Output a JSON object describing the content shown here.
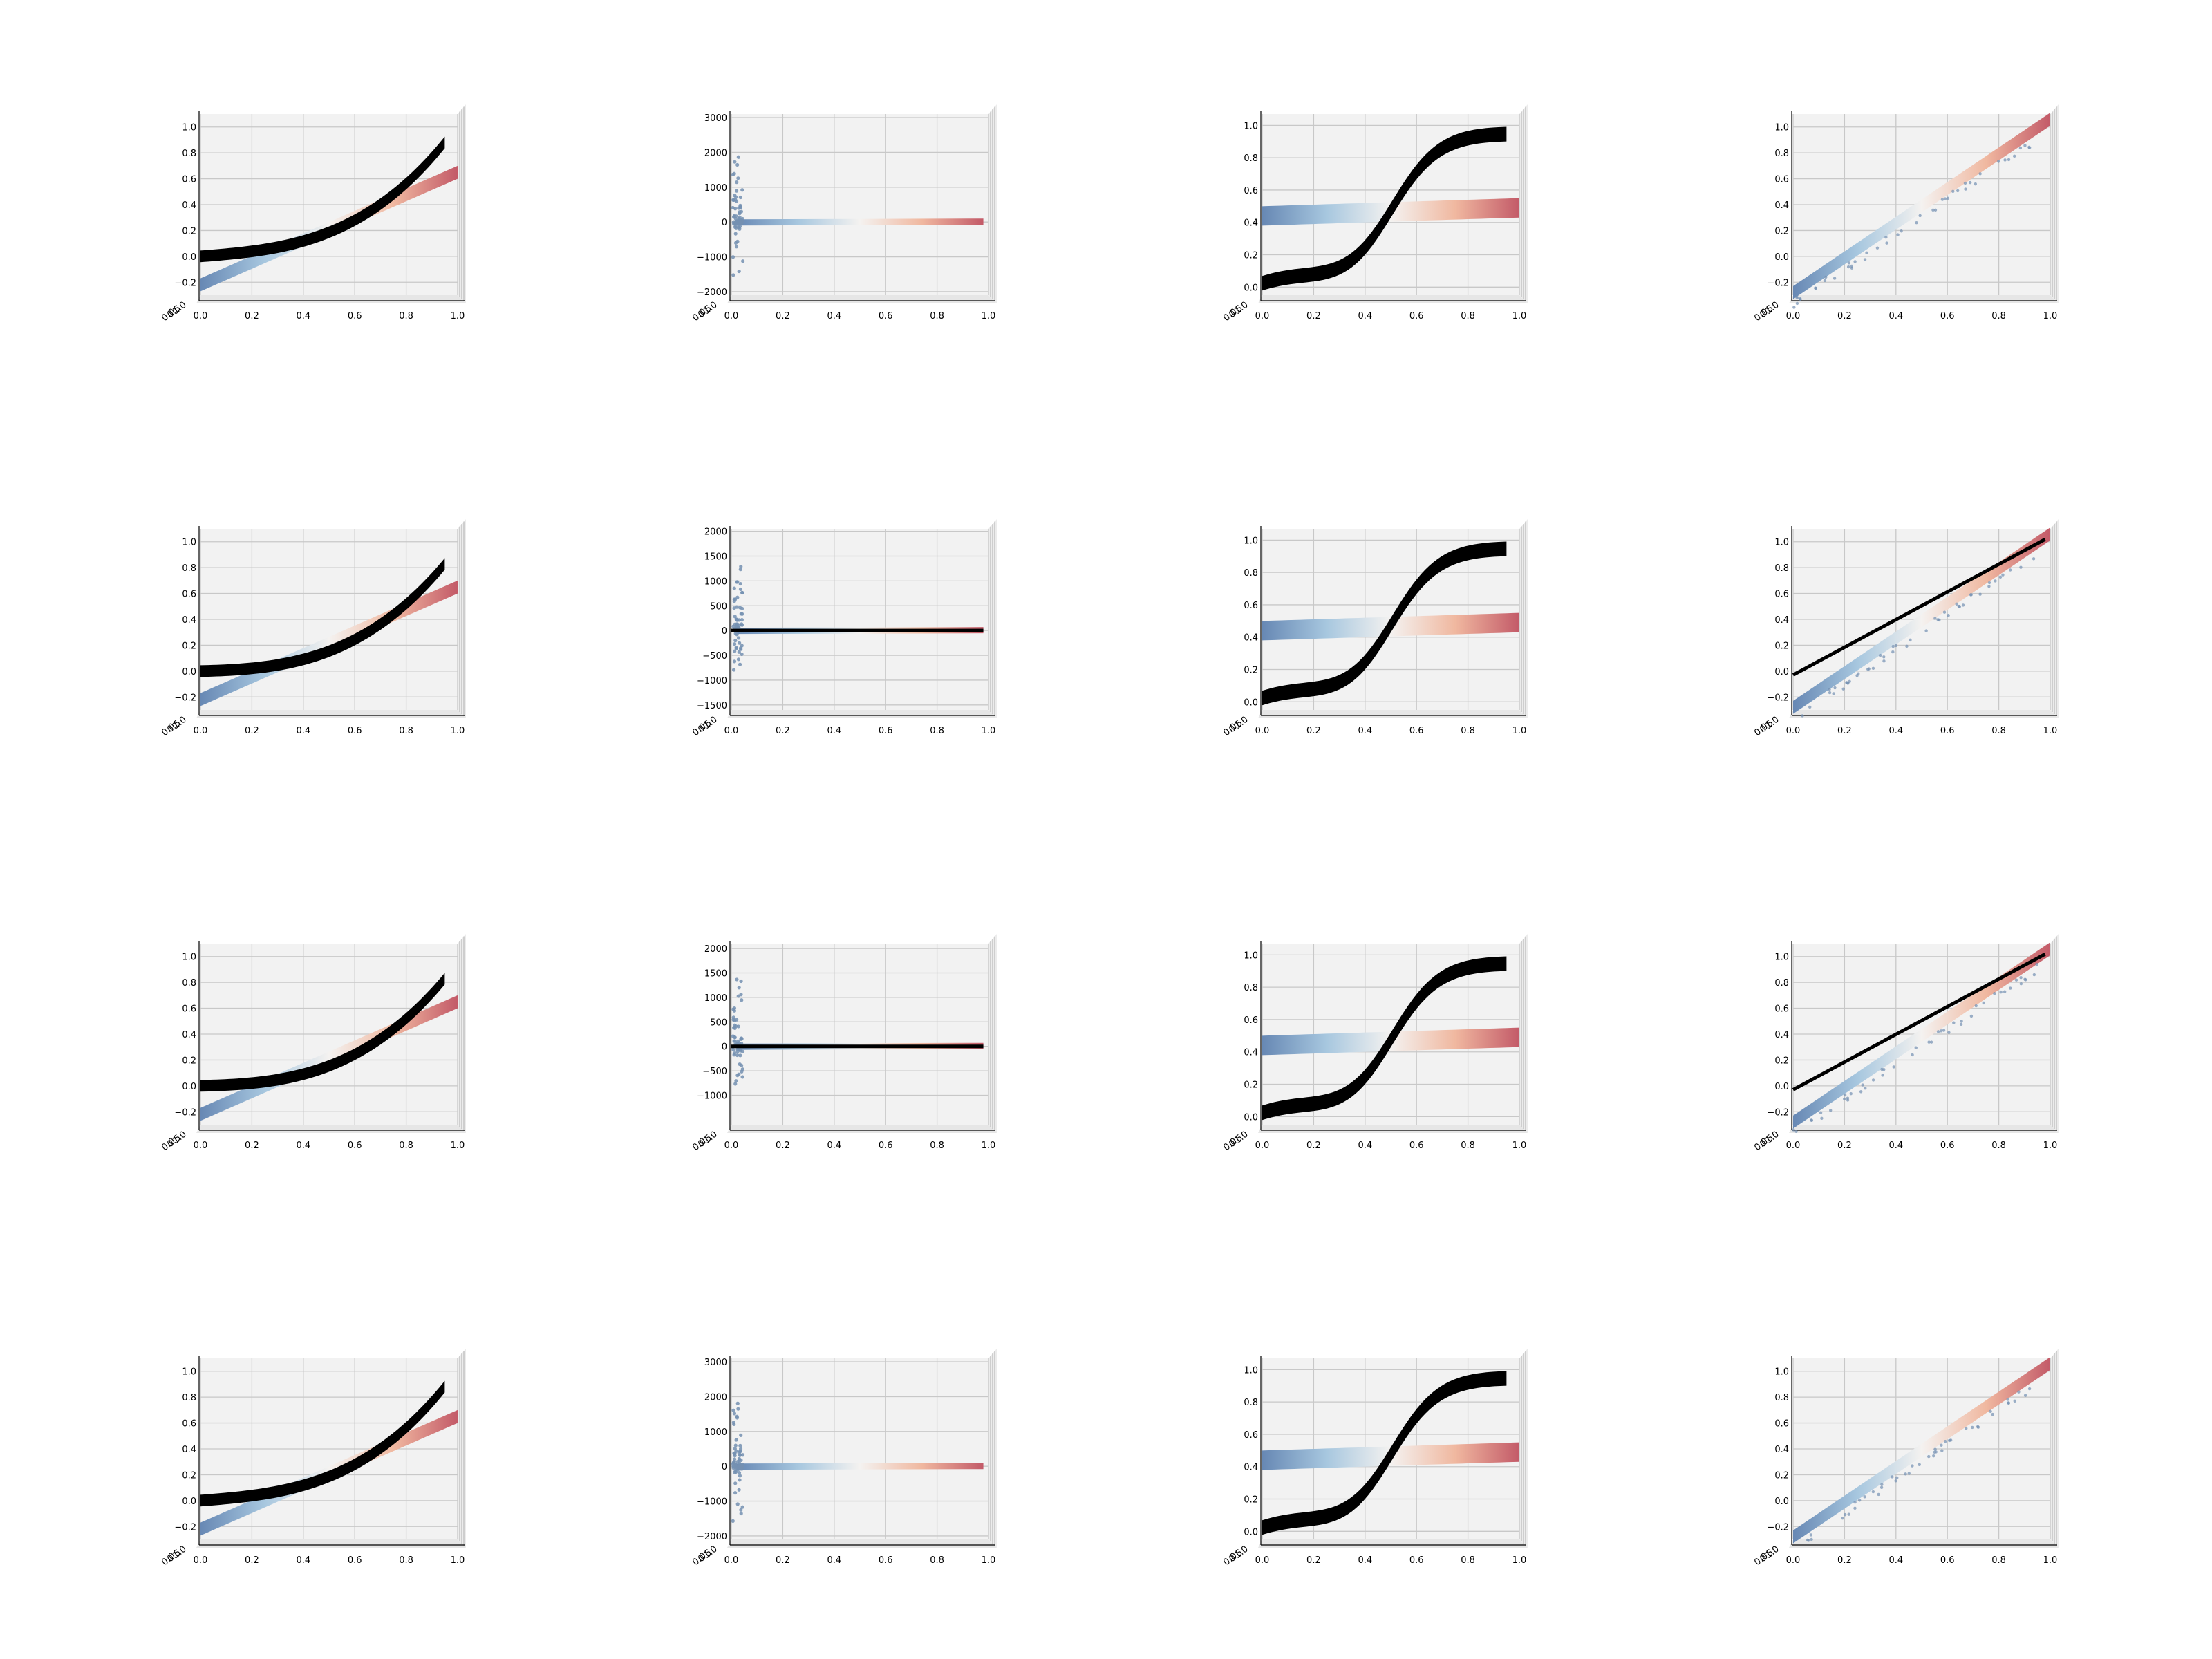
{
  "figure": {
    "rows": 4,
    "cols": 4,
    "colormap": [
      "#6788b4",
      "#a7c7df",
      "#f4f2f0",
      "#f0b8a0",
      "#c35a68"
    ],
    "fit_color": "#000000",
    "scatter_color": "#7490b2"
  },
  "chart_data": [
    {
      "id": "r1c1",
      "type": "surface",
      "func": "poly",
      "fit": "cubic",
      "fit_style": "band",
      "xlim": [
        0,
        1
      ],
      "ylim": [
        -0.3,
        1.1
      ],
      "xticks": [
        0.0,
        0.2,
        0.4,
        0.6,
        0.8,
        1.0
      ],
      "yticks": [
        -0.2,
        0.0,
        0.2,
        0.4,
        0.6,
        0.8,
        1.0
      ],
      "xtick_labels": [
        "0.0",
        "0.2",
        "0.4",
        "0.6",
        "0.8",
        "1.0"
      ],
      "ytick_labels": [
        "−0.2",
        "0.0",
        "0.2",
        "0.4",
        "0.6",
        "0.8",
        "1.0"
      ],
      "depth_tick_labels": [
        "0.0",
        "0.5",
        "1.0"
      ]
    },
    {
      "id": "r1c2",
      "type": "surface",
      "func": "poly",
      "fit": "none",
      "fit_style": "none",
      "xlim": [
        0,
        1
      ],
      "ylim": [
        -2100,
        3100
      ],
      "xticks": [
        0.0,
        0.2,
        0.4,
        0.6,
        0.8,
        1.0
      ],
      "yticks": [
        -2000,
        -1000,
        0,
        1000,
        2000,
        3000
      ],
      "xtick_labels": [
        "0.0",
        "0.2",
        "0.4",
        "0.6",
        "0.8",
        "1.0"
      ],
      "ytick_labels": [
        "−2000",
        "−1000",
        "0",
        "1000",
        "2000",
        "3000"
      ],
      "depth_tick_labels": [
        "0.0",
        "0.5",
        "1.0"
      ]
    },
    {
      "id": "r1c3",
      "type": "surface",
      "func": "flat",
      "fit": "sigmoid",
      "fit_style": "band",
      "xlim": [
        0,
        1
      ],
      "ylim": [
        -0.05,
        1.07
      ],
      "xticks": [
        0.0,
        0.2,
        0.4,
        0.6,
        0.8,
        1.0
      ],
      "yticks": [
        0.0,
        0.2,
        0.4,
        0.6,
        0.8,
        1.0
      ],
      "xtick_labels": [
        "0.0",
        "0.2",
        "0.4",
        "0.6",
        "0.8",
        "1.0"
      ],
      "ytick_labels": [
        "0.0",
        "0.2",
        "0.4",
        "0.6",
        "0.8",
        "1.0"
      ],
      "depth_tick_labels": [
        "0.0",
        "0.5",
        "1.0"
      ]
    },
    {
      "id": "r1c4",
      "type": "surface",
      "func": "linear",
      "fit": "none",
      "fit_style": "none",
      "xlim": [
        0,
        1
      ],
      "ylim": [
        -0.3,
        1.1
      ],
      "xticks": [
        0.0,
        0.2,
        0.4,
        0.6,
        0.8,
        1.0
      ],
      "yticks": [
        -0.2,
        0.0,
        0.2,
        0.4,
        0.6,
        0.8,
        1.0
      ],
      "xtick_labels": [
        "0.0",
        "0.2",
        "0.4",
        "0.6",
        "0.8",
        "1.0"
      ],
      "ytick_labels": [
        "−0.2",
        "0.0",
        "0.2",
        "0.4",
        "0.6",
        "0.8",
        "1.0"
      ],
      "depth_tick_labels": [
        "0.0",
        "0.5",
        "1.0"
      ]
    },
    {
      "id": "r2c1",
      "type": "surface",
      "func": "poly",
      "fit": "quad",
      "fit_style": "band",
      "xlim": [
        0,
        1
      ],
      "ylim": [
        -0.3,
        1.1
      ],
      "xticks": [
        0.0,
        0.2,
        0.4,
        0.6,
        0.8,
        1.0
      ],
      "yticks": [
        -0.2,
        0.0,
        0.2,
        0.4,
        0.6,
        0.8,
        1.0
      ],
      "xtick_labels": [
        "0.0",
        "0.2",
        "0.4",
        "0.6",
        "0.8",
        "1.0"
      ],
      "ytick_labels": [
        "−0.2",
        "0.0",
        "0.2",
        "0.4",
        "0.6",
        "0.8",
        "1.0"
      ],
      "depth_tick_labels": [
        "0.0",
        "0.5",
        "1.0"
      ]
    },
    {
      "id": "r2c2",
      "type": "surface",
      "func": "poly",
      "fit": "zero",
      "fit_style": "line",
      "xlim": [
        0,
        1
      ],
      "ylim": [
        -1600,
        2050
      ],
      "xticks": [
        0.0,
        0.2,
        0.4,
        0.6,
        0.8,
        1.0
      ],
      "yticks": [
        -1500,
        -1000,
        -500,
        0,
        500,
        1000,
        1500,
        2000
      ],
      "xtick_labels": [
        "0.0",
        "0.2",
        "0.4",
        "0.6",
        "0.8",
        "1.0"
      ],
      "ytick_labels": [
        "−1500",
        "−1000",
        "−500",
        "0",
        "500",
        "1000",
        "1500",
        "2000"
      ],
      "depth_tick_labels": [
        "0.0",
        "0.5",
        "1.0"
      ]
    },
    {
      "id": "r2c3",
      "type": "surface",
      "func": "flat",
      "fit": "sigmoid",
      "fit_style": "band",
      "xlim": [
        0,
        1
      ],
      "ylim": [
        -0.05,
        1.07
      ],
      "xticks": [
        0.0,
        0.2,
        0.4,
        0.6,
        0.8,
        1.0
      ],
      "yticks": [
        0.0,
        0.2,
        0.4,
        0.6,
        0.8,
        1.0
      ],
      "xtick_labels": [
        "0.0",
        "0.2",
        "0.4",
        "0.6",
        "0.8",
        "1.0"
      ],
      "ytick_labels": [
        "0.0",
        "0.2",
        "0.4",
        "0.6",
        "0.8",
        "1.0"
      ],
      "depth_tick_labels": [
        "0.0",
        "0.5",
        "1.0"
      ]
    },
    {
      "id": "r2c4",
      "type": "surface",
      "func": "linear",
      "fit": "linear",
      "fit_style": "line",
      "xlim": [
        0,
        1
      ],
      "ylim": [
        -0.3,
        1.1
      ],
      "xticks": [
        0.0,
        0.2,
        0.4,
        0.6,
        0.8,
        1.0
      ],
      "yticks": [
        -0.2,
        0.0,
        0.2,
        0.4,
        0.6,
        0.8,
        1.0
      ],
      "xtick_labels": [
        "0.0",
        "0.2",
        "0.4",
        "0.6",
        "0.8",
        "1.0"
      ],
      "ytick_labels": [
        "−0.2",
        "0.0",
        "0.2",
        "0.4",
        "0.6",
        "0.8",
        "1.0"
      ],
      "depth_tick_labels": [
        "0.0",
        "0.5",
        "1.0"
      ]
    },
    {
      "id": "r3c1",
      "type": "surface",
      "func": "poly",
      "fit": "quad",
      "fit_style": "band",
      "xlim": [
        0,
        1
      ],
      "ylim": [
        -0.3,
        1.1
      ],
      "xticks": [
        0.0,
        0.2,
        0.4,
        0.6,
        0.8,
        1.0
      ],
      "yticks": [
        -0.2,
        0.0,
        0.2,
        0.4,
        0.6,
        0.8,
        1.0
      ],
      "xtick_labels": [
        "0.0",
        "0.2",
        "0.4",
        "0.6",
        "0.8",
        "1.0"
      ],
      "ytick_labels": [
        "−0.2",
        "0.0",
        "0.2",
        "0.4",
        "0.6",
        "0.8",
        "1.0"
      ],
      "depth_tick_labels": [
        "0.0",
        "0.5",
        "1.0"
      ]
    },
    {
      "id": "r3c2",
      "type": "surface",
      "func": "poly",
      "fit": "zero",
      "fit_style": "line",
      "xlim": [
        0,
        1
      ],
      "ylim": [
        -1600,
        2100
      ],
      "xticks": [
        0.0,
        0.2,
        0.4,
        0.6,
        0.8,
        1.0
      ],
      "yticks": [
        -1000,
        -500,
        0,
        500,
        1000,
        1500,
        2000
      ],
      "xtick_labels": [
        "0.0",
        "0.2",
        "0.4",
        "0.6",
        "0.8",
        "1.0"
      ],
      "ytick_labels": [
        "−1000",
        "−500",
        "0",
        "500",
        "1000",
        "1500",
        "2000"
      ],
      "depth_tick_labels": [
        "0.0",
        "0.5",
        "1.0"
      ]
    },
    {
      "id": "r3c3",
      "type": "surface",
      "func": "flat",
      "fit": "sigmoid",
      "fit_style": "band",
      "xlim": [
        0,
        1
      ],
      "ylim": [
        -0.05,
        1.07
      ],
      "xticks": [
        0.0,
        0.2,
        0.4,
        0.6,
        0.8,
        1.0
      ],
      "yticks": [
        0.0,
        0.2,
        0.4,
        0.6,
        0.8,
        1.0
      ],
      "xtick_labels": [
        "0.0",
        "0.2",
        "0.4",
        "0.6",
        "0.8",
        "1.0"
      ],
      "ytick_labels": [
        "0.0",
        "0.2",
        "0.4",
        "0.6",
        "0.8",
        "1.0"
      ],
      "depth_tick_labels": [
        "0.0",
        "0.5",
        "1.0"
      ]
    },
    {
      "id": "r3c4",
      "type": "surface",
      "func": "linear",
      "fit": "linear",
      "fit_style": "line",
      "xlim": [
        0,
        1
      ],
      "ylim": [
        -0.3,
        1.1
      ],
      "xticks": [
        0.0,
        0.2,
        0.4,
        0.6,
        0.8,
        1.0
      ],
      "yticks": [
        -0.2,
        0.0,
        0.2,
        0.4,
        0.6,
        0.8,
        1.0
      ],
      "xtick_labels": [
        "0.0",
        "0.2",
        "0.4",
        "0.6",
        "0.8",
        "1.0"
      ],
      "ytick_labels": [
        "−0.2",
        "0.0",
        "0.2",
        "0.4",
        "0.6",
        "0.8",
        "1.0"
      ],
      "depth_tick_labels": [
        "0.0",
        "0.5",
        "1.0"
      ]
    },
    {
      "id": "r4c1",
      "type": "surface",
      "func": "poly",
      "fit": "cubic",
      "fit_style": "band",
      "xlim": [
        0,
        1
      ],
      "ylim": [
        -0.3,
        1.1
      ],
      "xticks": [
        0.0,
        0.2,
        0.4,
        0.6,
        0.8,
        1.0
      ],
      "yticks": [
        -0.2,
        0.0,
        0.2,
        0.4,
        0.6,
        0.8,
        1.0
      ],
      "xtick_labels": [
        "0.0",
        "0.2",
        "0.4",
        "0.6",
        "0.8",
        "1.0"
      ],
      "ytick_labels": [
        "−0.2",
        "0.0",
        "0.2",
        "0.4",
        "0.6",
        "0.8",
        "1.0"
      ],
      "depth_tick_labels": [
        "0.0",
        "0.5",
        "1.0"
      ]
    },
    {
      "id": "r4c2",
      "type": "surface",
      "func": "poly",
      "fit": "none",
      "fit_style": "none",
      "xlim": [
        0,
        1
      ],
      "ylim": [
        -2100,
        3100
      ],
      "xticks": [
        0.0,
        0.2,
        0.4,
        0.6,
        0.8,
        1.0
      ],
      "yticks": [
        -2000,
        -1000,
        0,
        1000,
        2000,
        3000
      ],
      "xtick_labels": [
        "0.0",
        "0.2",
        "0.4",
        "0.6",
        "0.8",
        "1.0"
      ],
      "ytick_labels": [
        "−2000",
        "−1000",
        "0",
        "1000",
        "2000",
        "3000"
      ],
      "depth_tick_labels": [
        "0.0",
        "0.5",
        "1.0"
      ]
    },
    {
      "id": "r4c3",
      "type": "surface",
      "func": "flat",
      "fit": "sigmoid",
      "fit_style": "band",
      "xlim": [
        0,
        1
      ],
      "ylim": [
        -0.05,
        1.07
      ],
      "xticks": [
        0.0,
        0.2,
        0.4,
        0.6,
        0.8,
        1.0
      ],
      "yticks": [
        0.0,
        0.2,
        0.4,
        0.6,
        0.8,
        1.0
      ],
      "xtick_labels": [
        "0.0",
        "0.2",
        "0.4",
        "0.6",
        "0.8",
        "1.0"
      ],
      "ytick_labels": [
        "0.0",
        "0.2",
        "0.4",
        "0.6",
        "0.8",
        "1.0"
      ],
      "depth_tick_labels": [
        "0.0",
        "0.5",
        "1.0"
      ]
    },
    {
      "id": "r4c4",
      "type": "surface",
      "func": "linear",
      "fit": "none",
      "fit_style": "none",
      "xlim": [
        0,
        1
      ],
      "ylim": [
        -0.3,
        1.1
      ],
      "xticks": [
        0.0,
        0.2,
        0.4,
        0.6,
        0.8,
        1.0
      ],
      "yticks": [
        -0.2,
        0.0,
        0.2,
        0.4,
        0.6,
        0.8,
        1.0
      ],
      "xtick_labels": [
        "0.0",
        "0.2",
        "0.4",
        "0.6",
        "0.8",
        "1.0"
      ],
      "ytick_labels": [
        "−0.2",
        "0.0",
        "0.2",
        "0.4",
        "0.6",
        "0.8",
        "1.0"
      ],
      "depth_tick_labels": [
        "0.0",
        "0.5",
        "1.0"
      ]
    }
  ]
}
